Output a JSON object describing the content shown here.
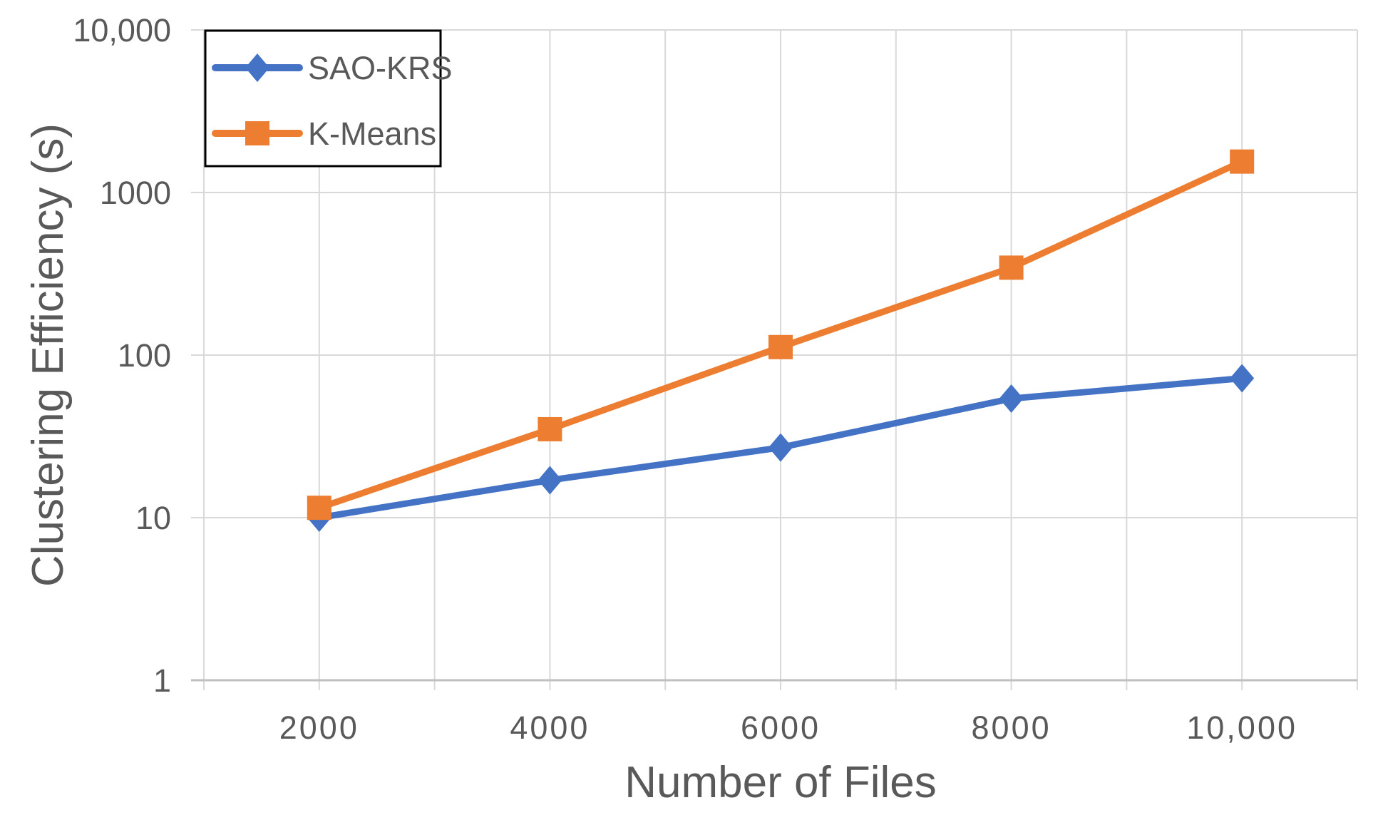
{
  "chart_data": {
    "type": "line",
    "title": "",
    "xlabel": "Number of Files",
    "ylabel": "Clustering Efficiency (s)",
    "categories": [
      2000,
      4000,
      6000,
      8000,
      10000
    ],
    "x_tick_labels": [
      "2000",
      "4000",
      "6000",
      "8000",
      "10,000"
    ],
    "series": [
      {
        "name": "SAO-KRS",
        "color": "#4472C4",
        "marker": "diamond",
        "values": [
          10,
          17,
          27,
          54,
          72
        ]
      },
      {
        "name": "K-Means",
        "color": "#ED7D31",
        "marker": "square",
        "values": [
          11.5,
          35,
          112,
          345,
          1550
        ]
      }
    ],
    "y_axis": {
      "scale": "log",
      "min": 1,
      "max": 10000,
      "ticks": [
        1,
        10,
        100,
        1000,
        10000
      ],
      "tick_labels": [
        "1",
        "10",
        "100",
        "1000",
        "10,000"
      ]
    },
    "x_axis": {
      "min": 1000,
      "max": 11000,
      "gridline_step": 1000
    },
    "grid": true,
    "legend": {
      "position": "top-left",
      "entries": [
        "SAO-KRS",
        "K-Means"
      ]
    },
    "colors": {
      "gridline": "#D9D9D9",
      "axis_line": "#BFBFBF",
      "text": "#595959",
      "legend_border": "#000000",
      "background": "#FFFFFF"
    }
  }
}
